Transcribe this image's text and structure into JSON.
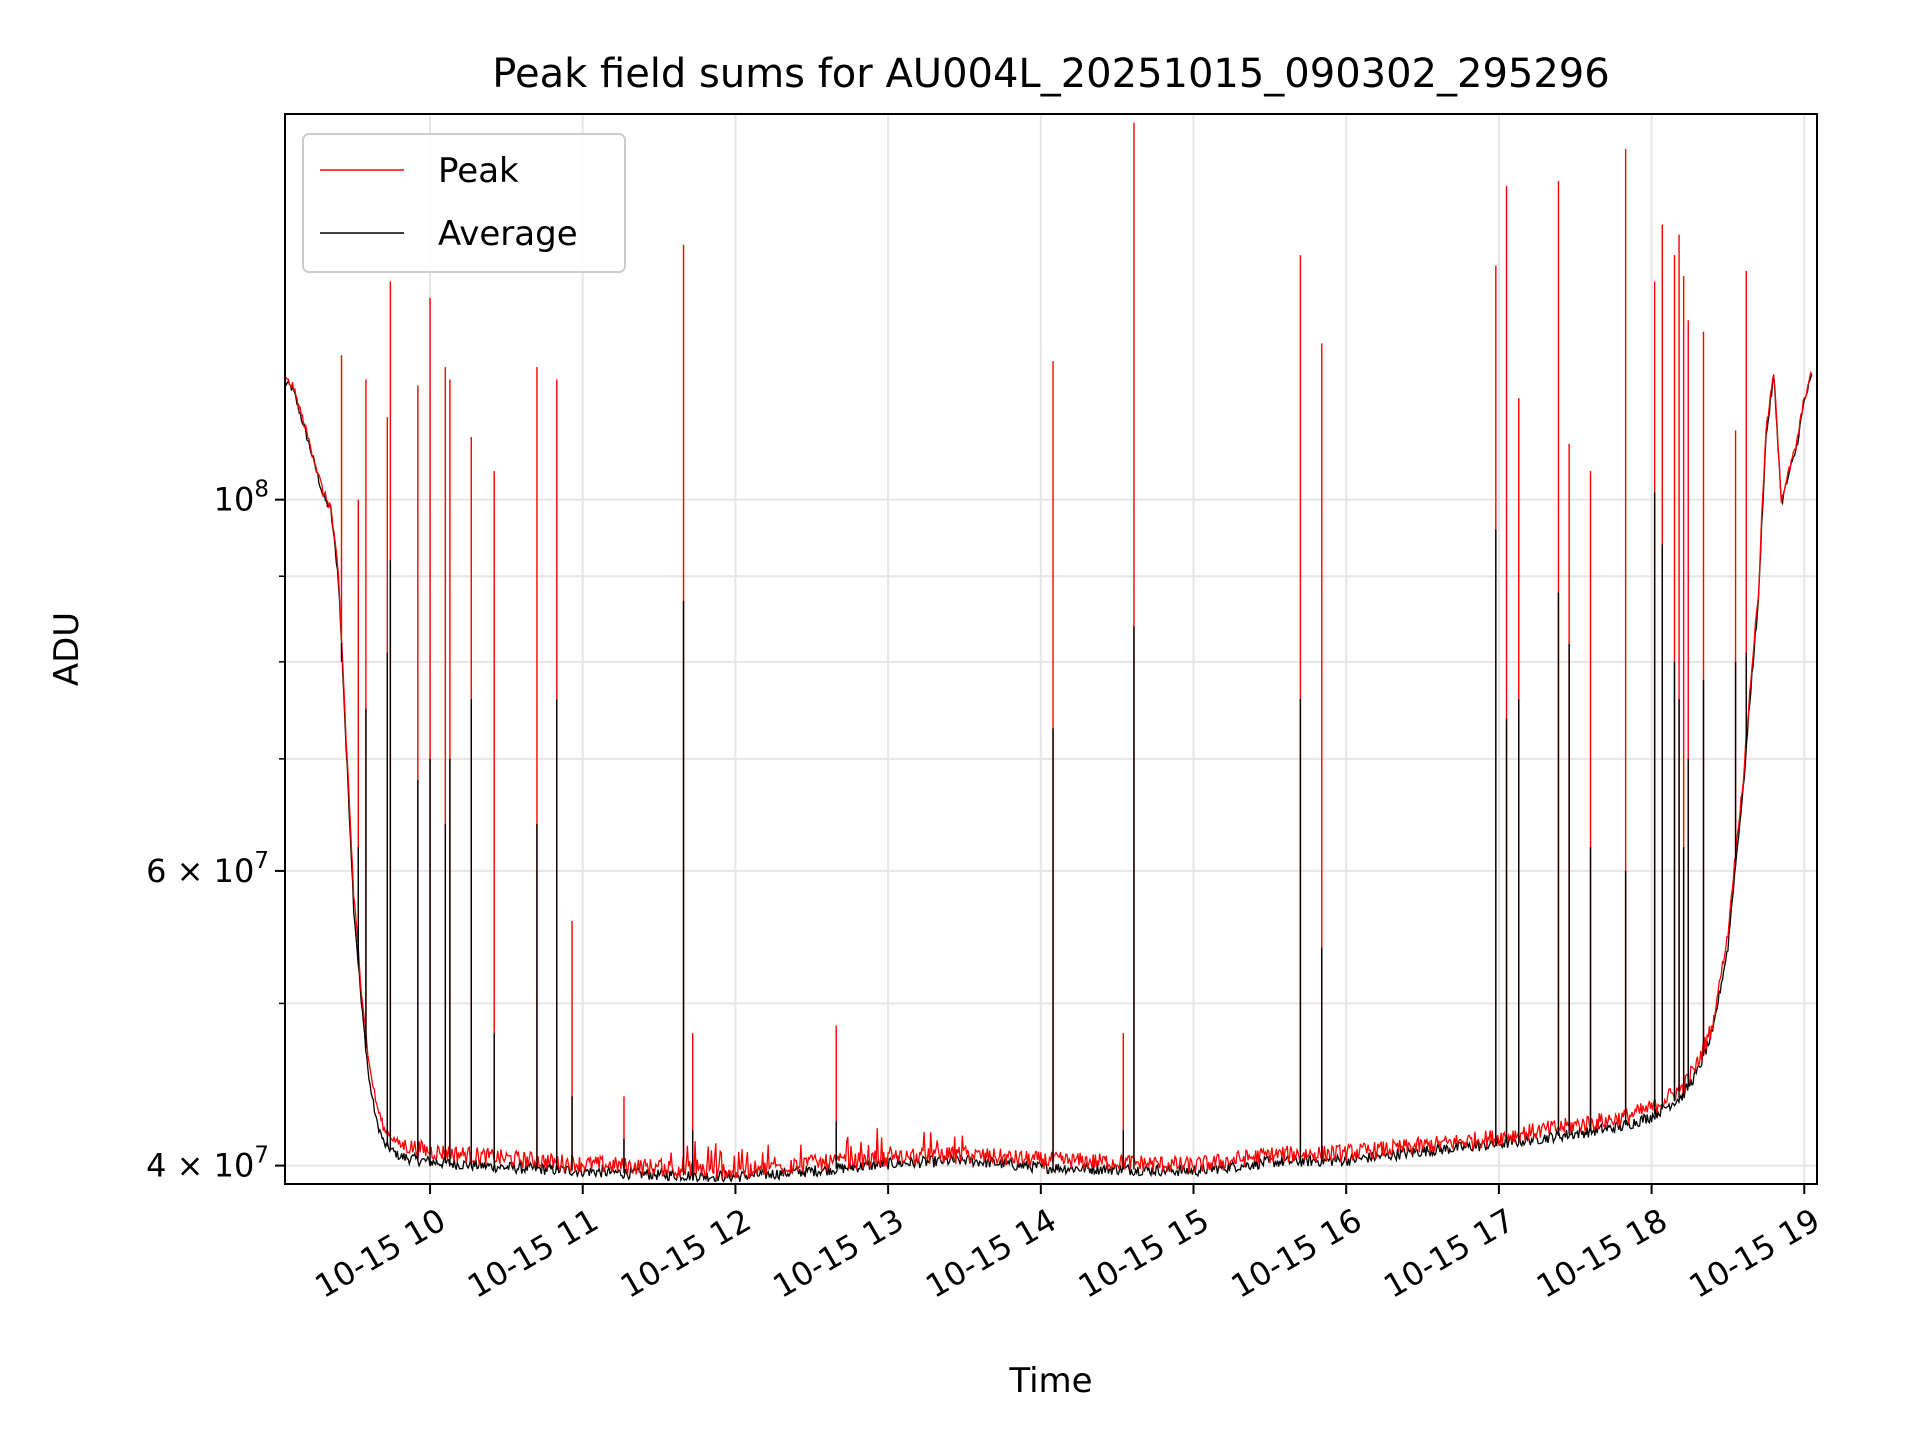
{
  "chart_data": {
    "type": "line",
    "title": "Peak field sums for AU004L_20251015_090302_295296",
    "xlabel": "Time",
    "ylabel": "ADU",
    "yscale": "log",
    "grid": true,
    "legend_position": "top-left",
    "xlim": [
      "2025-10-15 09:03",
      "2025-10-15 19:05"
    ],
    "ylim": [
      39000000,
      170000000
    ],
    "x_ticks": [
      "10-15 10",
      "10-15 11",
      "10-15 12",
      "10-15 13",
      "10-15 14",
      "10-15 15",
      "10-15 16",
      "10-15 17",
      "10-15 18",
      "10-15 19"
    ],
    "y_major_ticks": [
      {
        "value": 100000000,
        "base": "10",
        "exp": "8"
      },
      {
        "value": 60000000,
        "base": "6 × 10",
        "exp": "7"
      },
      {
        "value": 40000000,
        "base": "4 × 10",
        "exp": "7"
      }
    ],
    "y_minor_ticks": [
      50000000,
      70000000,
      80000000,
      90000000
    ],
    "x_hours": [
      9.05,
      9.1,
      9.2,
      9.3,
      9.35,
      9.4,
      9.45,
      9.5,
      9.55,
      9.6,
      9.65,
      9.7,
      9.8,
      10.0,
      10.5,
      11.0,
      11.5,
      12.0,
      12.5,
      13.0,
      13.5,
      14.0,
      14.5,
      15.0,
      15.5,
      16.0,
      16.5,
      17.0,
      17.5,
      17.8,
      18.0,
      18.2,
      18.3,
      18.4,
      18.5,
      18.6,
      18.7,
      18.75,
      18.8,
      18.85,
      18.9,
      18.95,
      19.0,
      19.05
    ],
    "series": [
      {
        "name": "Peak",
        "color": "#ff0000",
        "values": [
          118000000,
          117000000,
          109000000,
          101000000,
          99000000,
          90000000,
          72000000,
          58000000,
          51000000,
          46000000,
          43500000,
          42000000,
          41200000,
          40800000,
          40400000,
          40100000,
          39900000,
          39700000,
          40100000,
          40400000,
          40600000,
          40300000,
          40200000,
          40000000,
          40600000,
          40700000,
          41100000,
          41600000,
          42300000,
          42700000,
          43300000,
          44500000,
          46000000,
          48500000,
          55000000,
          68000000,
          88000000,
          110000000,
          119000000,
          100000000,
          104000000,
          108000000,
          115000000,
          119000000
        ]
      },
      {
        "name": "Average",
        "color": "#000000",
        "values": [
          117500000,
          116500000,
          108500000,
          100500000,
          98500000,
          89500000,
          71000000,
          57000000,
          50000000,
          45000000,
          42500000,
          41200000,
          40500000,
          40200000,
          39900000,
          39700000,
          39500000,
          39400000,
          39700000,
          40100000,
          40300000,
          39900000,
          39800000,
          39700000,
          40200000,
          40300000,
          40800000,
          41200000,
          41800000,
          42200000,
          42800000,
          44000000,
          45500000,
          48000000,
          54000000,
          67000000,
          87000000,
          109000000,
          118500000,
          99500000,
          103500000,
          107500000,
          114500000,
          118500000
        ]
      }
    ],
    "spikes": [
      {
        "x": 9.42,
        "peak": 122000000,
        "avg": 80000000
      },
      {
        "x": 9.53,
        "peak": 100000000,
        "avg": 62000000
      },
      {
        "x": 9.58,
        "peak": 118000000,
        "avg": 75000000
      },
      {
        "x": 9.72,
        "peak": 112000000,
        "avg": 81000000
      },
      {
        "x": 9.74,
        "peak": 135000000,
        "avg": 92000000
      },
      {
        "x": 9.92,
        "peak": 117000000,
        "avg": 68000000
      },
      {
        "x": 10.0,
        "peak": 132000000,
        "avg": 70000000
      },
      {
        "x": 10.1,
        "peak": 120000000,
        "avg": 64000000
      },
      {
        "x": 10.13,
        "peak": 118000000,
        "avg": 70000000
      },
      {
        "x": 10.27,
        "peak": 109000000,
        "avg": 76000000
      },
      {
        "x": 10.42,
        "peak": 104000000,
        "avg": 48000000
      },
      {
        "x": 10.7,
        "peak": 120000000,
        "avg": 64000000
      },
      {
        "x": 10.83,
        "peak": 118000000,
        "avg": 76000000
      },
      {
        "x": 10.93,
        "peak": 56000000,
        "avg": 44000000
      },
      {
        "x": 11.27,
        "peak": 44000000,
        "avg": 41500000
      },
      {
        "x": 11.66,
        "peak": 142000000,
        "avg": 87000000
      },
      {
        "x": 11.72,
        "peak": 48000000,
        "avg": 42000000
      },
      {
        "x": 12.66,
        "peak": 48500000,
        "avg": 42500000
      },
      {
        "x": 14.08,
        "peak": 121000000,
        "avg": 73000000
      },
      {
        "x": 14.54,
        "peak": 48000000,
        "avg": 42000000
      },
      {
        "x": 14.61,
        "peak": 168000000,
        "avg": 84000000
      },
      {
        "x": 15.7,
        "peak": 140000000,
        "avg": 76000000
      },
      {
        "x": 15.84,
        "peak": 124000000,
        "avg": 54000000
      },
      {
        "x": 16.98,
        "peak": 138000000,
        "avg": 96000000
      },
      {
        "x": 17.05,
        "peak": 154000000,
        "avg": 74000000
      },
      {
        "x": 17.13,
        "peak": 115000000,
        "avg": 76000000
      },
      {
        "x": 17.39,
        "peak": 155000000,
        "avg": 88000000
      },
      {
        "x": 17.46,
        "peak": 108000000,
        "avg": 82000000
      },
      {
        "x": 17.6,
        "peak": 104000000,
        "avg": 62000000
      },
      {
        "x": 17.83,
        "peak": 162000000,
        "avg": 60000000
      },
      {
        "x": 18.02,
        "peak": 135000000,
        "avg": 101000000
      },
      {
        "x": 18.07,
        "peak": 146000000,
        "avg": 94000000
      },
      {
        "x": 18.15,
        "peak": 140000000,
        "avg": 80000000
      },
      {
        "x": 18.18,
        "peak": 144000000,
        "avg": 76000000
      },
      {
        "x": 18.21,
        "peak": 136000000,
        "avg": 62000000
      },
      {
        "x": 18.24,
        "peak": 128000000,
        "avg": 70000000
      },
      {
        "x": 18.34,
        "peak": 126000000,
        "avg": 78000000
      },
      {
        "x": 18.55,
        "peak": 110000000,
        "avg": 80000000
      },
      {
        "x": 18.62,
        "peak": 137000000,
        "avg": 81000000
      }
    ]
  }
}
